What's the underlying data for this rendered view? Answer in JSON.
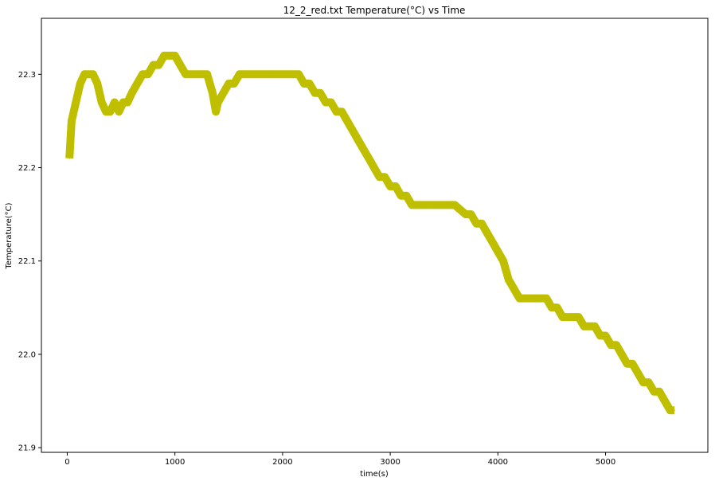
{
  "chart_data": {
    "type": "line",
    "title": "12_2_red.txt  Temperature(°C) vs Time",
    "xlabel": "time(s)",
    "ylabel": "Temperature(°C)",
    "xlim": [
      -240,
      5950
    ],
    "ylim": [
      21.895,
      22.36
    ],
    "x_ticks": [
      0,
      1000,
      2000,
      3000,
      4000,
      5000
    ],
    "y_ticks": [
      21.9,
      22.0,
      22.1,
      22.2,
      22.3
    ],
    "x_tick_labels": [
      "0",
      "1000",
      "2000",
      "3000",
      "4000",
      "5000"
    ],
    "y_tick_labels": [
      "21.9",
      "22.0",
      "22.1",
      "22.2",
      "22.3"
    ],
    "grid": false,
    "legend": "none",
    "series": [
      {
        "color": "#bfbf00",
        "x": [
          20,
          40,
          80,
          120,
          160,
          200,
          240,
          280,
          320,
          360,
          400,
          440,
          480,
          520,
          560,
          600,
          650,
          700,
          750,
          800,
          850,
          900,
          950,
          1000,
          1050,
          1100,
          1150,
          1200,
          1250,
          1300,
          1350,
          1380,
          1400,
          1450,
          1500,
          1550,
          1600,
          1700,
          1800,
          1900,
          2000,
          2100,
          2150,
          2200,
          2250,
          2300,
          2350,
          2400,
          2450,
          2500,
          2550,
          2600,
          2650,
          2700,
          2750,
          2800,
          2850,
          2900,
          2950,
          3000,
          3050,
          3100,
          3150,
          3200,
          3300,
          3400,
          3500,
          3600,
          3700,
          3750,
          3800,
          3850,
          3900,
          3950,
          4000,
          4050,
          4100,
          4150,
          4200,
          4250,
          4300,
          4350,
          4400,
          4450,
          4500,
          4550,
          4600,
          4650,
          4700,
          4750,
          4800,
          4850,
          4900,
          4950,
          5000,
          5050,
          5100,
          5150,
          5200,
          5250,
          5300,
          5350,
          5400,
          5450,
          5500,
          5550,
          5600,
          5640
        ],
        "y": [
          22.21,
          22.25,
          22.27,
          22.29,
          22.3,
          22.3,
          22.3,
          22.29,
          22.27,
          22.26,
          22.26,
          22.27,
          22.26,
          22.27,
          22.27,
          22.28,
          22.29,
          22.3,
          22.3,
          22.31,
          22.31,
          22.32,
          22.32,
          22.32,
          22.31,
          22.3,
          22.3,
          22.3,
          22.3,
          22.3,
          22.28,
          22.26,
          22.27,
          22.28,
          22.29,
          22.29,
          22.3,
          22.3,
          22.3,
          22.3,
          22.3,
          22.3,
          22.3,
          22.29,
          22.29,
          22.28,
          22.28,
          22.27,
          22.27,
          22.26,
          22.26,
          22.25,
          22.24,
          22.23,
          22.22,
          22.21,
          22.2,
          22.19,
          22.19,
          22.18,
          22.18,
          22.17,
          22.17,
          22.16,
          22.16,
          22.16,
          22.16,
          22.16,
          22.15,
          22.15,
          22.14,
          22.14,
          22.13,
          22.12,
          22.11,
          22.1,
          22.08,
          22.07,
          22.06,
          22.06,
          22.06,
          22.06,
          22.06,
          22.06,
          22.05,
          22.05,
          22.04,
          22.04,
          22.04,
          22.04,
          22.03,
          22.03,
          22.03,
          22.02,
          22.02,
          22.01,
          22.01,
          22.0,
          21.99,
          21.99,
          21.98,
          21.97,
          21.97,
          21.96,
          21.96,
          21.95,
          21.94,
          21.94
        ]
      }
    ]
  }
}
